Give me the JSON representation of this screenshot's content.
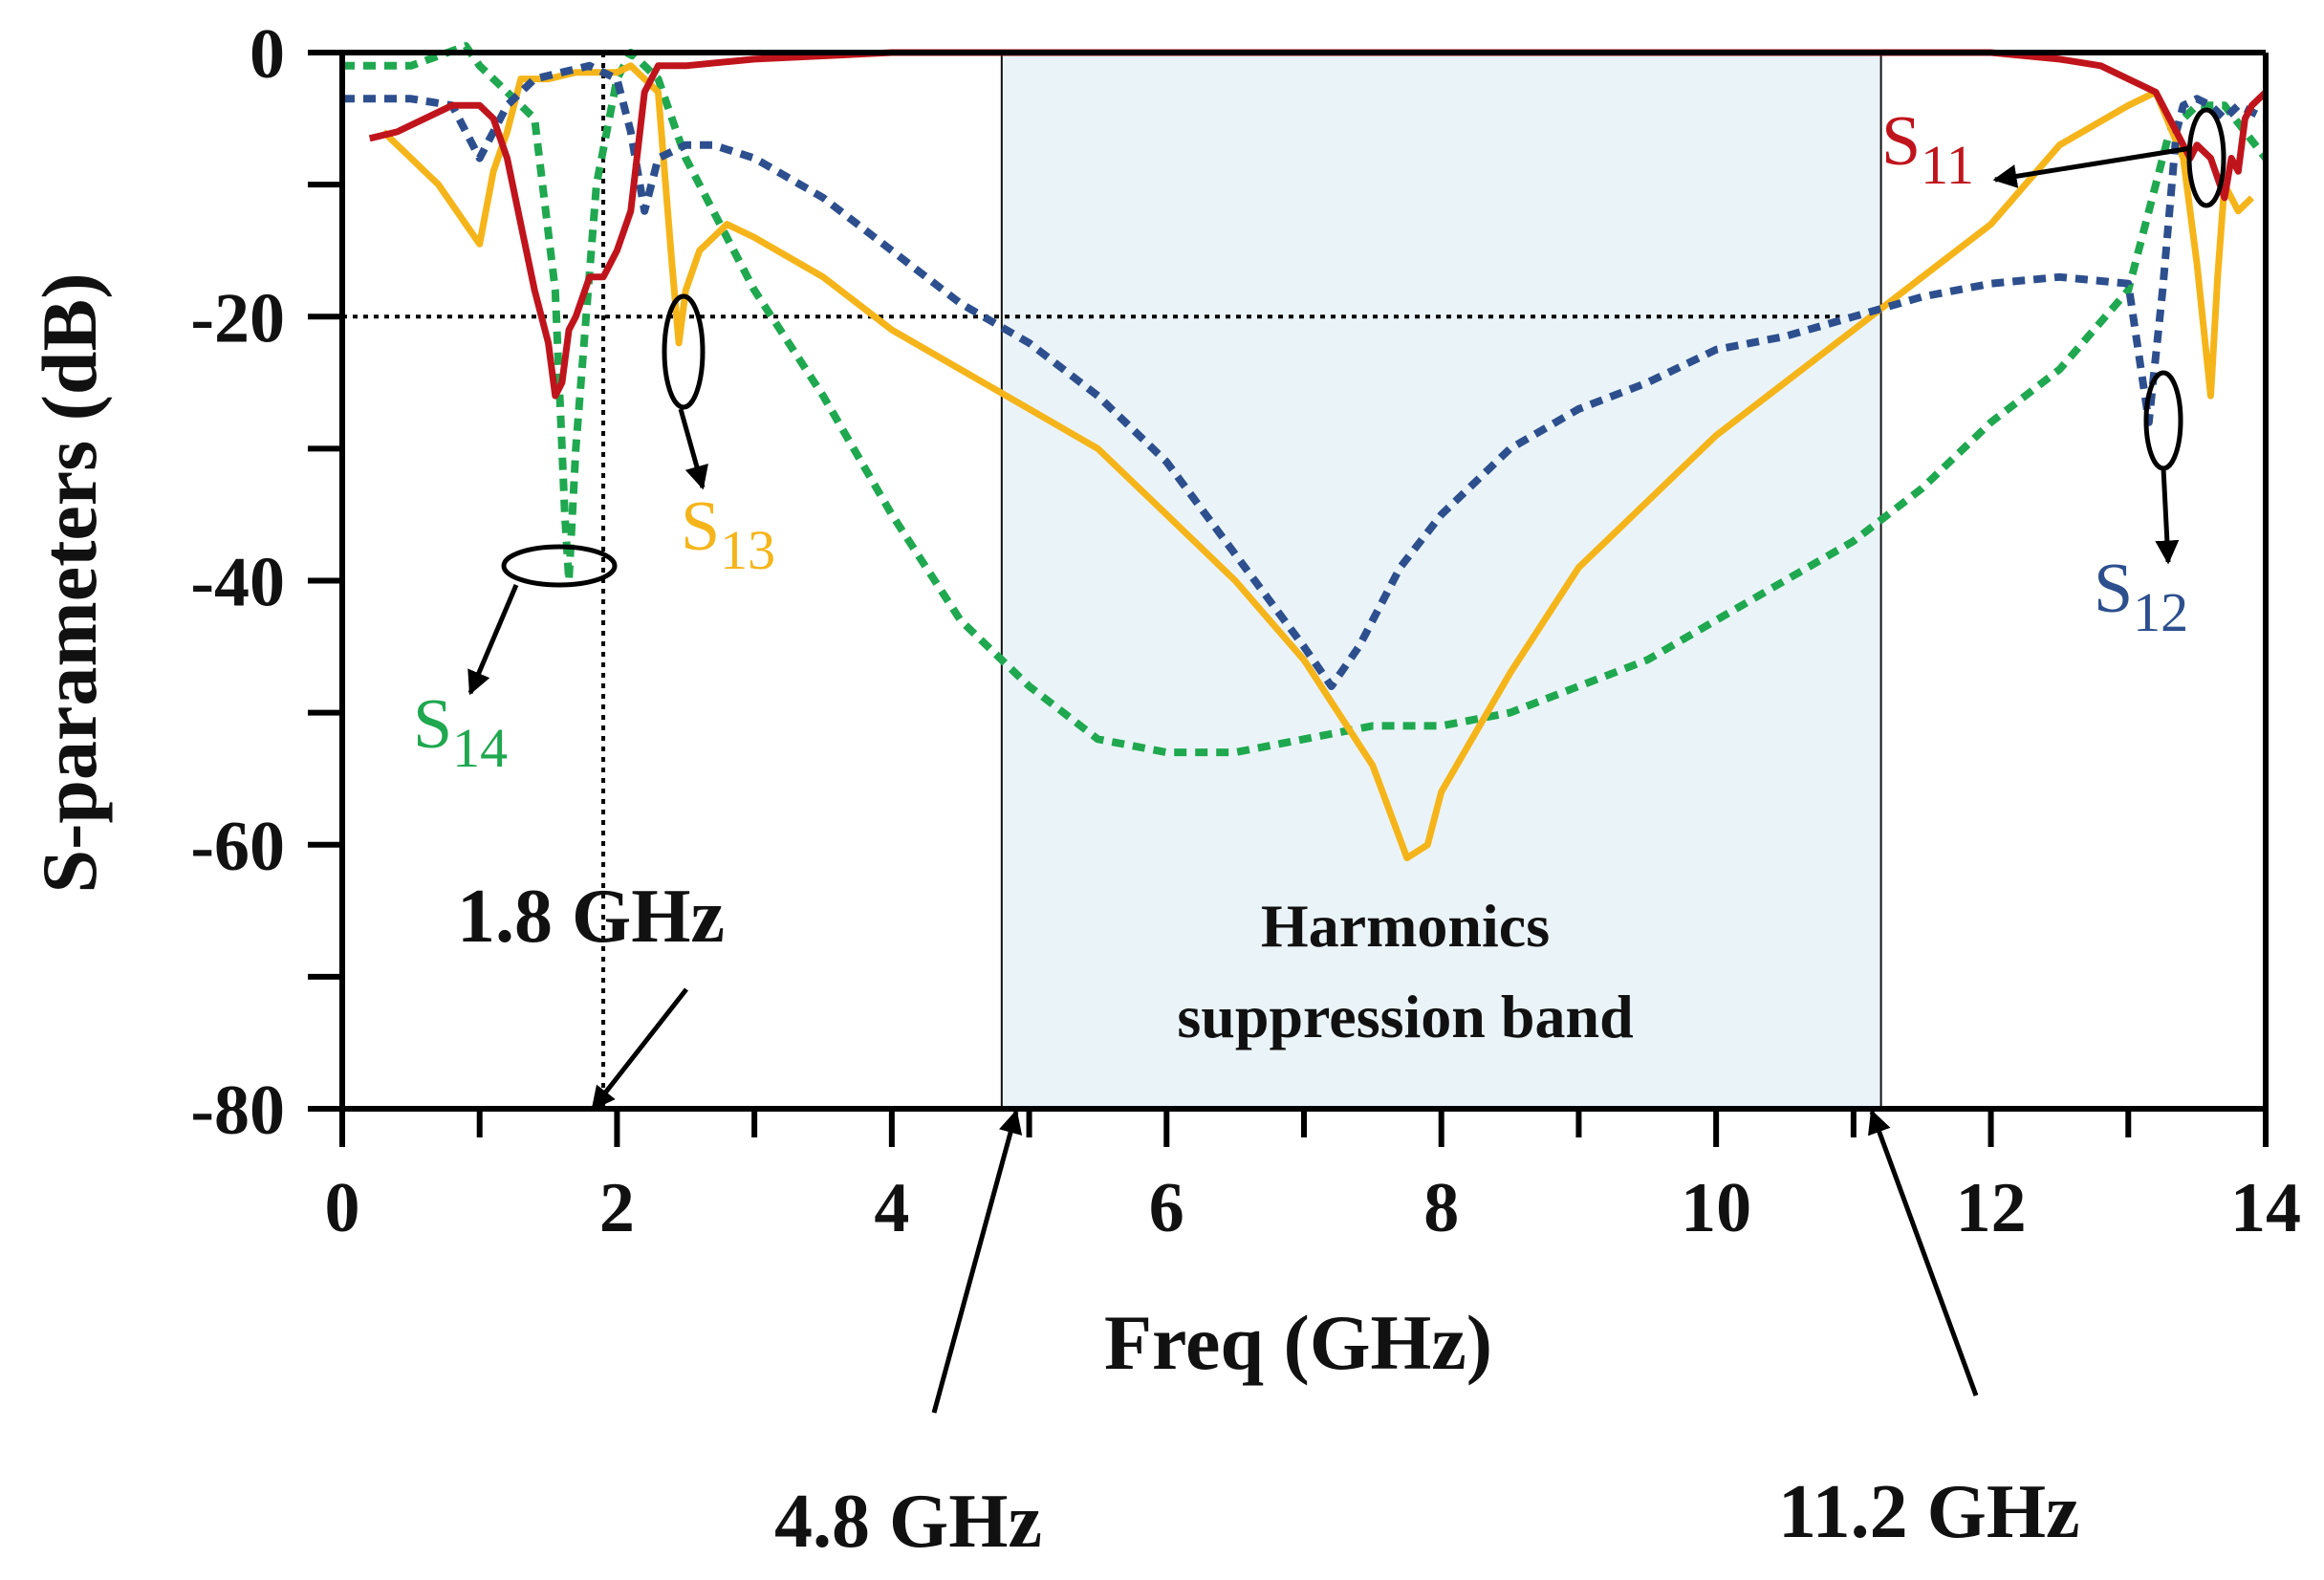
{
  "chart_data": {
    "type": "line",
    "title": "",
    "xlabel": "Freq (GHz)",
    "ylabel": "S-parameters (dB)",
    "xlim": [
      0,
      14
    ],
    "ylim": [
      -80,
      0
    ],
    "xticks": [
      0,
      2,
      4,
      6,
      8,
      10,
      12,
      14
    ],
    "yticks": [
      0,
      -20,
      -40,
      -60,
      -80
    ],
    "xtick_labels": [
      "0",
      "2",
      "4",
      "6",
      "8",
      "10",
      "12",
      "14"
    ],
    "ytick_labels": [
      "0",
      "-20",
      "-40",
      "-60",
      "-80"
    ],
    "grid": false,
    "band": {
      "start": 4.8,
      "end": 11.2,
      "label_line1": "Harmonics",
      "label_line2": "suppression band",
      "color": "#eaf4f8"
    },
    "reference": {
      "x": 1.9,
      "y": -20
    },
    "annotations": [
      {
        "key": "f1",
        "text": "1.8 GHz"
      },
      {
        "key": "f2",
        "text": "4.8 GHz"
      },
      {
        "key": "f3",
        "text": "11.2 GHz"
      }
    ],
    "series": [
      {
        "name": "S14",
        "base": "S",
        "sub": "14",
        "color": "#1fa84f",
        "dashed": true,
        "x": [
          0,
          0.5,
          0.9,
          1.0,
          1.2,
          1.4,
          1.55,
          1.6,
          1.62,
          1.65,
          1.7,
          1.85,
          2.0,
          2.1,
          2.2,
          2.3,
          2.5,
          3.0,
          3.5,
          4.0,
          4.5,
          5.0,
          5.5,
          6.0,
          6.5,
          7.0,
          7.5,
          8.0,
          8.5,
          9.0,
          9.5,
          10.0,
          10.5,
          11.0,
          11.5,
          12.0,
          12.5,
          13.0,
          13.2,
          13.3,
          13.5,
          13.7,
          13.85,
          14.0
        ],
        "y": [
          -1,
          -1,
          0.5,
          -1,
          -3,
          -5,
          -18,
          -30,
          -35,
          -40,
          -30,
          -10,
          -2,
          0,
          -1,
          -2,
          -8,
          -18,
          -26,
          -35,
          -43,
          -48,
          -52,
          -53,
          -53,
          -52,
          -51,
          -51,
          -50,
          -48,
          -46,
          -43,
          -40,
          -37,
          -33,
          -28,
          -24,
          -18,
          -10,
          -6,
          -4,
          -4,
          -6,
          -8
        ]
      },
      {
        "name": "S13",
        "base": "S",
        "sub": "13",
        "color": "#f5b51a",
        "dashed": false,
        "x": [
          0.3,
          0.5,
          0.7,
          0.9,
          1.0,
          1.1,
          1.2,
          1.3,
          1.4,
          1.5,
          1.7,
          1.9,
          2.0,
          2.1,
          2.2,
          2.3,
          2.4,
          2.45,
          2.5,
          2.6,
          2.8,
          3.0,
          3.5,
          4.0,
          4.5,
          5.0,
          5.5,
          6.0,
          6.5,
          7.0,
          7.5,
          7.75,
          7.9,
          8.0,
          8.5,
          9.0,
          9.5,
          10.0,
          10.5,
          11.0,
          11.5,
          12.0,
          12.5,
          13.0,
          13.2,
          13.4,
          13.5,
          13.6,
          13.65,
          13.7,
          13.8,
          13.9
        ],
        "y": [
          -6,
          -8,
          -10,
          -13,
          -14.5,
          -9,
          -6,
          -2,
          -2,
          -2,
          -1.5,
          -1.5,
          -1.5,
          -1,
          -2,
          -3,
          -16,
          -22,
          -18,
          -15,
          -13,
          -14,
          -17,
          -21,
          -24,
          -27,
          -30,
          -35,
          -40,
          -46,
          -54,
          -61,
          -60,
          -56,
          -47,
          -39,
          -34,
          -29,
          -25,
          -21,
          -17,
          -13,
          -7,
          -4,
          -3,
          -8,
          -16,
          -26,
          -17,
          -10,
          -12,
          -11
        ]
      },
      {
        "name": "S12",
        "base": "S",
        "sub": "12",
        "color": "#2d4f8e",
        "dashed": true,
        "x": [
          0,
          0.5,
          0.8,
          1.0,
          1.2,
          1.4,
          1.6,
          1.8,
          2.0,
          2.1,
          2.2,
          2.3,
          2.5,
          2.7,
          3.0,
          3.5,
          4.0,
          4.5,
          5.0,
          5.5,
          6.0,
          6.5,
          7.0,
          7.2,
          7.4,
          7.7,
          8.0,
          8.5,
          9.0,
          9.5,
          10.0,
          10.5,
          11.0,
          11.5,
          12.0,
          12.5,
          13.0,
          13.15,
          13.25,
          13.35,
          13.4,
          13.5,
          13.6,
          13.7,
          13.8,
          14.0
        ],
        "y": [
          -3.5,
          -3.5,
          -4,
          -8,
          -4,
          -2,
          -1.5,
          -1,
          -2,
          -6,
          -12,
          -8,
          -7,
          -7,
          -8,
          -11,
          -15,
          -19,
          -22,
          -26,
          -31,
          -38,
          -45,
          -48,
          -45,
          -39,
          -35,
          -30,
          -27,
          -25,
          -22.5,
          -21.5,
          -20,
          -18.5,
          -17.5,
          -17,
          -17.5,
          -28,
          -18,
          -6,
          -4,
          -3.5,
          -4,
          -5,
          -4,
          -5
        ]
      },
      {
        "name": "S11",
        "base": "S",
        "sub": "11",
        "color": "#c0141c",
        "dashed": false,
        "x": [
          0.2,
          0.4,
          0.6,
          0.8,
          1.0,
          1.1,
          1.2,
          1.3,
          1.4,
          1.5,
          1.55,
          1.6,
          1.65,
          1.7,
          1.8,
          1.9,
          2.0,
          2.1,
          2.2,
          2.3,
          2.5,
          3.0,
          4.0,
          6.0,
          8.0,
          10.0,
          12.0,
          12.5,
          12.8,
          13.0,
          13.2,
          13.35,
          13.45,
          13.5,
          13.6,
          13.7,
          13.75,
          13.8,
          13.85,
          13.9,
          14.0
        ],
        "y": [
          -6.5,
          -6,
          -5,
          -4,
          -4,
          -5,
          -8,
          -13,
          -18,
          -22,
          -26,
          -25,
          -21,
          -20,
          -17,
          -17,
          -15,
          -12,
          -3,
          -1,
          -1,
          -0.5,
          0,
          0,
          0,
          0,
          0,
          -0.5,
          -1,
          -2,
          -3,
          -6,
          -8,
          -7,
          -8,
          -11,
          -8,
          -9,
          -5,
          -4,
          -3
        ]
      }
    ]
  }
}
